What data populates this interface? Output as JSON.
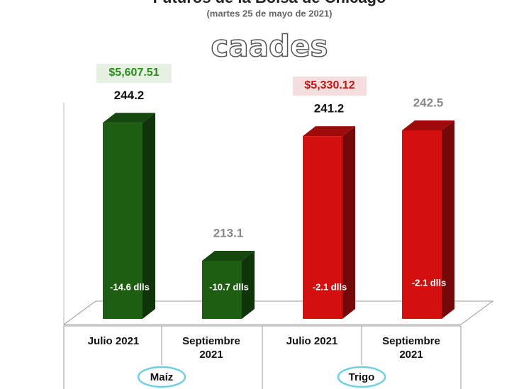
{
  "chart_data": {
    "type": "bar3d",
    "title": "Futuros de la Bolsa de Chicago",
    "subtitle": "(martes 25 de mayo de 2021)",
    "watermark": "caades",
    "categories": [
      "Julio 2021",
      "Septiembre 2021",
      "Julio 2021",
      "Septiembre 2021"
    ],
    "values": [
      244.2,
      213.1,
      241.2,
      242.5
    ],
    "colors": [
      "#1d5e13",
      "#1d5e13",
      "#d40f0f",
      "#d40f0f"
    ],
    "change_labels": [
      "-14.6 dlls",
      "-10.7 dlls",
      "-2.1 dlls",
      "-2.1 dlls"
    ],
    "groups": [
      {
        "name": "Maíz",
        "total": "$5,607.51"
      },
      {
        "name": "Trigo",
        "total": "$5,330.12"
      }
    ],
    "ylim": [
      200,
      250
    ]
  }
}
